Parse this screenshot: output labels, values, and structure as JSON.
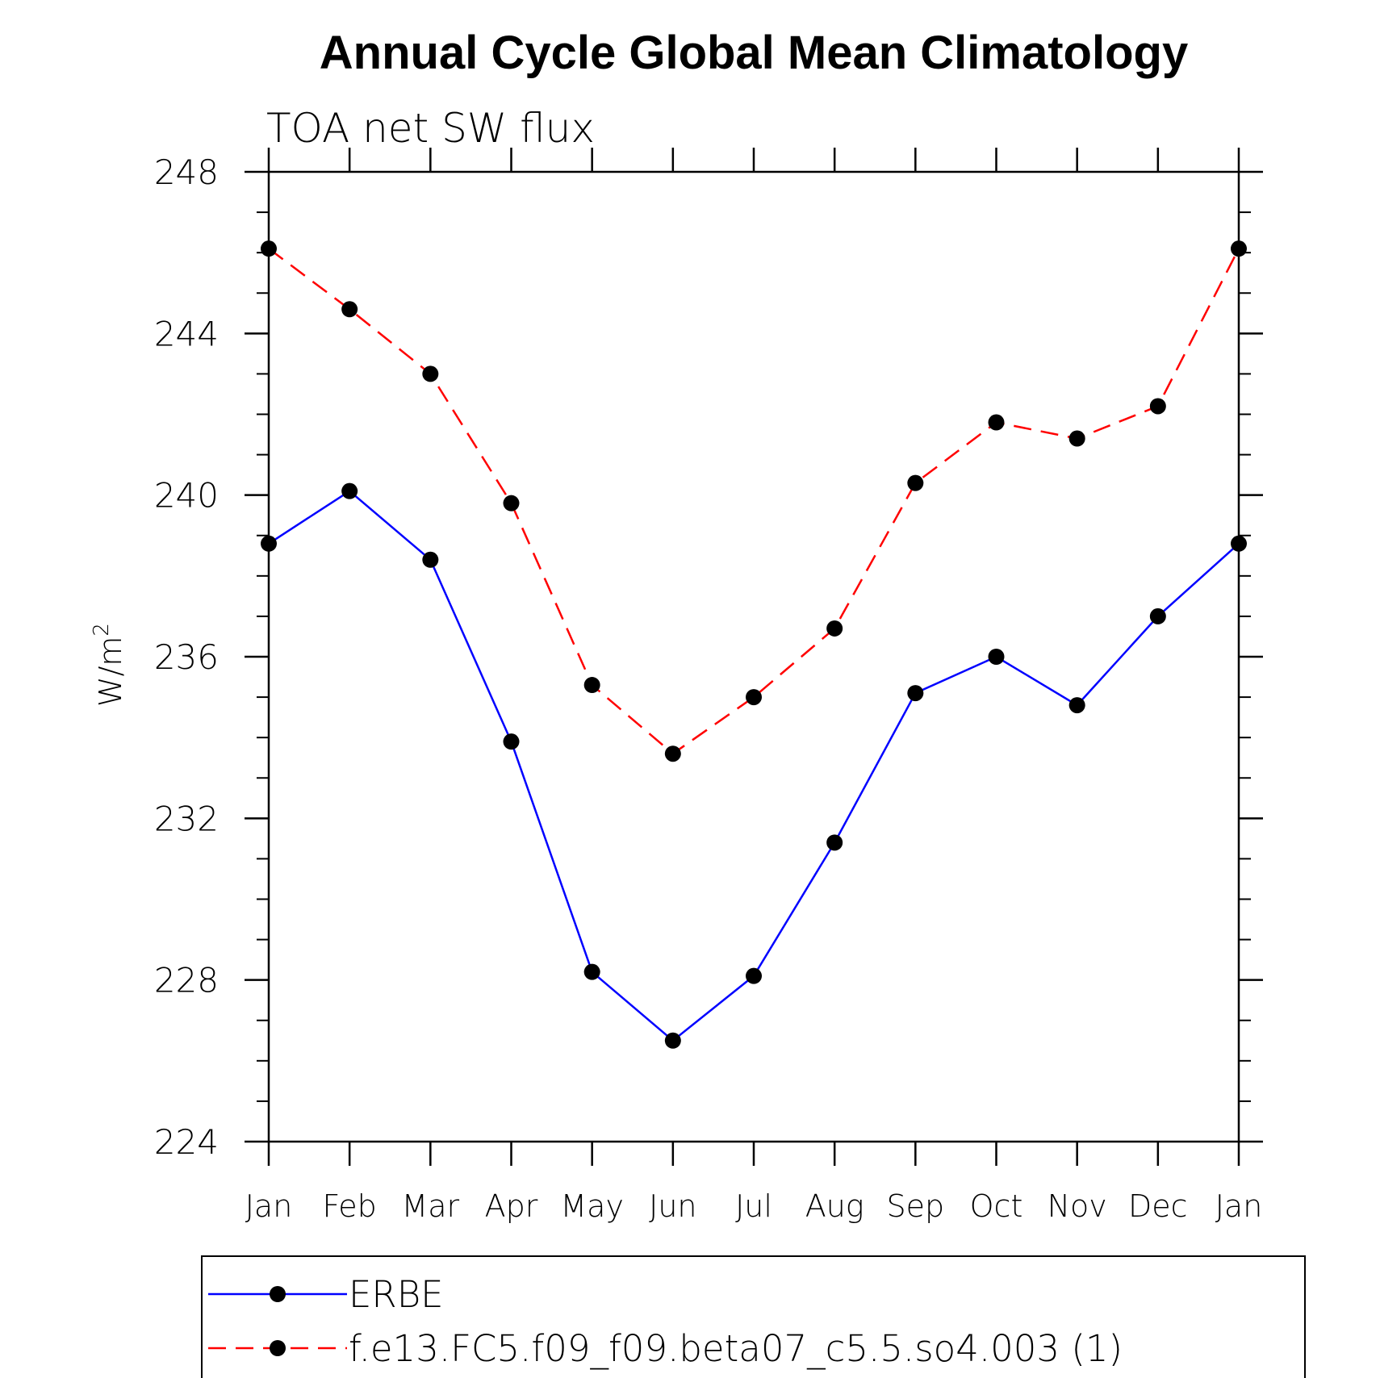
{
  "chart_data": {
    "type": "line",
    "title": "Annual Cycle Global Mean Climatology",
    "subtitle": "TOA net SW flux",
    "ylabel": "W/m",
    "ylabel_superscript": "2",
    "xlabel": "",
    "categories": [
      "Jan",
      "Feb",
      "Mar",
      "Apr",
      "May",
      "Jun",
      "Jul",
      "Aug",
      "Sep",
      "Oct",
      "Nov",
      "Dec",
      "Jan"
    ],
    "ylim": [
      224,
      248
    ],
    "yticks": [
      224,
      228,
      232,
      236,
      240,
      244,
      248
    ],
    "ytick_labels": [
      "224",
      "228",
      "232",
      "236",
      "240",
      "244",
      "248"
    ],
    "grid": false,
    "legend_position": "bottom",
    "series": [
      {
        "name": "ERBE",
        "color": "#0000ff",
        "line_style": "solid",
        "marker": "circle",
        "values": [
          238.8,
          240.1,
          238.4,
          233.9,
          228.2,
          226.5,
          228.1,
          231.4,
          235.1,
          236.0,
          234.8,
          237.0,
          238.8
        ]
      },
      {
        "name": "f.e13.FC5.f09_f09.beta07_c5.5.so4.003 (1)",
        "color": "#ff0000",
        "line_style": "dashed",
        "marker": "circle",
        "values": [
          246.1,
          244.6,
          243.0,
          239.8,
          235.3,
          233.6,
          235.0,
          236.7,
          240.3,
          241.8,
          241.4,
          242.2,
          246.1
        ]
      }
    ]
  }
}
